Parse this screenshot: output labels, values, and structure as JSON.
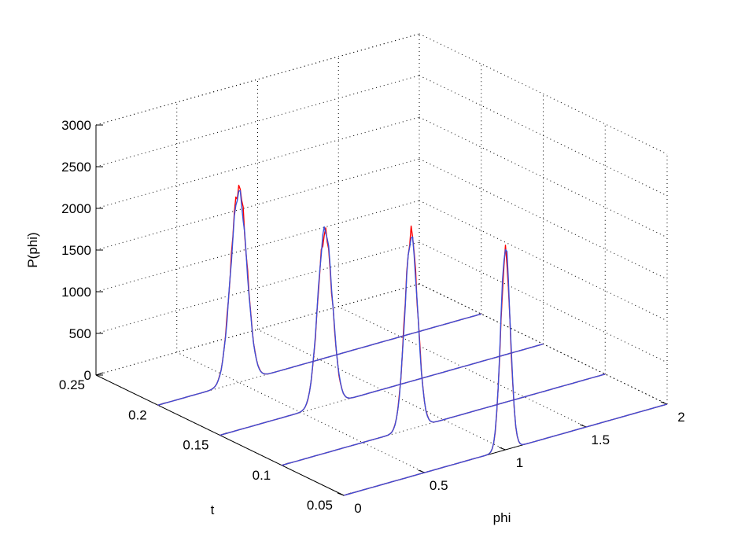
{
  "chart_data": {
    "type": "line",
    "subtype": "3d-waterfall",
    "title": "",
    "xlabel": "phi",
    "ylabel": "t",
    "zlabel": "P(phi)",
    "xlim": [
      0,
      2
    ],
    "ylim": [
      0.05,
      0.25
    ],
    "zlim": [
      0,
      3000
    ],
    "x_ticks": [
      "0",
      "0.5",
      "1",
      "1.5",
      "2"
    ],
    "y_ticks": [
      "0.05",
      "0.1",
      "0.15",
      "0.2",
      "0.25"
    ],
    "z_ticks": [
      "0",
      "500",
      "1000",
      "1500",
      "2000",
      "2500",
      "3000"
    ],
    "x_tick_values": [
      0,
      0.5,
      1,
      1.5,
      2
    ],
    "y_tick_values": [
      0.05,
      0.1,
      0.15,
      0.2,
      0.25
    ],
    "z_tick_values": [
      0,
      500,
      1000,
      1500,
      2000,
      2500,
      3000
    ],
    "grid": true,
    "legend": "none",
    "colors": {
      "series_a": "#ff0000",
      "series_b": "#3b4fd8"
    },
    "slices": [
      {
        "t": 0.2,
        "peak_center": 0.5,
        "peak_width": 0.05,
        "series_a_peak": 2340,
        "series_b_peak": 2280
      },
      {
        "t": 0.15,
        "peak_center": 0.65,
        "peak_width": 0.045,
        "series_a_peak": 2080,
        "series_b_peak": 2120
      },
      {
        "t": 0.1,
        "peak_center": 0.8,
        "peak_width": 0.04,
        "series_a_peak": 2350,
        "series_b_peak": 2300
      },
      {
        "t": 0.05,
        "peak_center": 1.0,
        "peak_width": 0.03,
        "series_a_peak": 2350,
        "series_b_peak": 2430
      }
    ]
  }
}
